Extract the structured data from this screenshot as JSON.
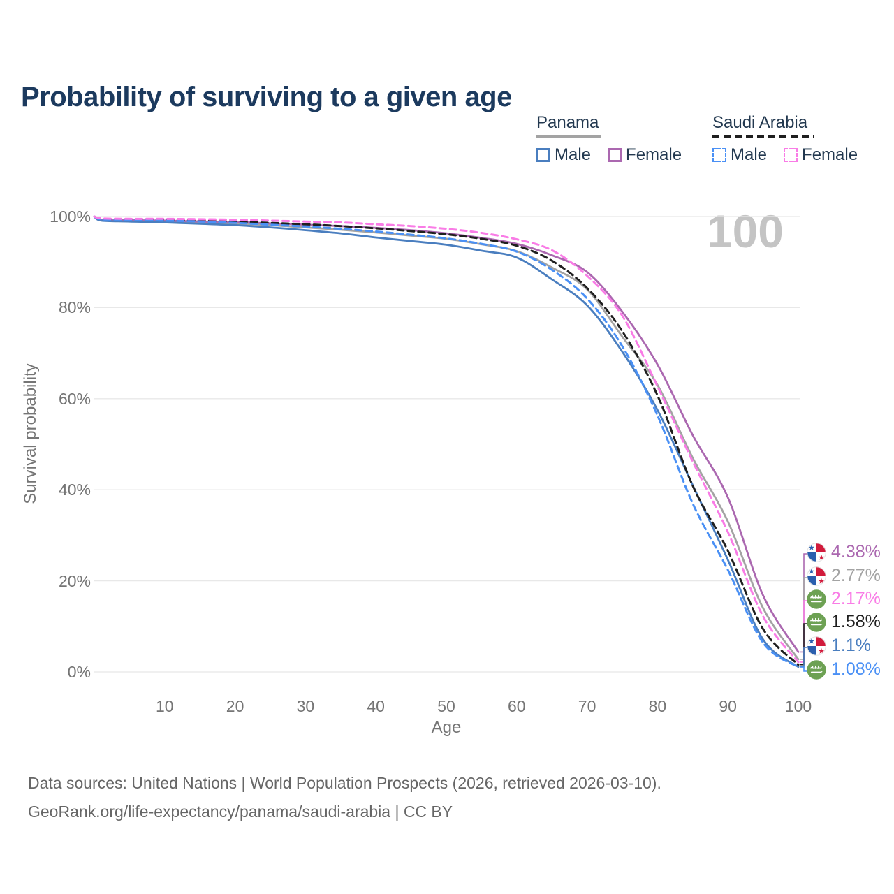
{
  "title": "Probability of surviving to a given age",
  "watermark": "100",
  "legend": {
    "groups": [
      {
        "label": "Panama",
        "line": "solid",
        "underline_color": "#a3a3a3",
        "items": [
          {
            "label": "Male",
            "color": "#4a7ebf"
          },
          {
            "label": "Female",
            "color": "#ab68b0"
          }
        ]
      },
      {
        "label": "Saudi Arabia",
        "line": "dashed",
        "underline_color": "#1f1f1f",
        "items": [
          {
            "label": "Male",
            "color": "#4a90f5"
          },
          {
            "label": "Female",
            "color": "#f97ce6"
          }
        ]
      }
    ]
  },
  "axes": {
    "x": {
      "label": "Age",
      "ticks": [
        10,
        20,
        30,
        40,
        50,
        60,
        70,
        80,
        90,
        100
      ],
      "range": [
        0,
        100
      ]
    },
    "y": {
      "label": "Survival probability",
      "ticks": [
        {
          "value": 100,
          "label": "100%"
        },
        {
          "value": 80,
          "label": "80%"
        },
        {
          "value": 60,
          "label": "60%"
        },
        {
          "value": 40,
          "label": "40%"
        },
        {
          "value": 20,
          "label": "20%"
        },
        {
          "value": 0,
          "label": "0%"
        }
      ],
      "range": [
        0,
        100
      ]
    }
  },
  "footer": {
    "line1": "Data sources: United Nations | World Population Prospects (2026, retrieved 2026-03-10).",
    "line2": "GeoRank.org/life-expectancy/panama/saudi-arabia | CC BY"
  },
  "colors": {
    "title": "#1c3a5e",
    "axis_text": "#757575",
    "gridline": "#e8e8e8",
    "watermark": "#c4c4c4",
    "footer_text": "#666666",
    "panama_flag_blue": "#2b5fae",
    "panama_flag_red": "#d21b3c",
    "saudi_flag_green": "#6da153"
  },
  "chart_data": {
    "type": "line",
    "title": "Probability of surviving to a given age",
    "xlabel": "Age",
    "ylabel": "Survival probability",
    "xlim": [
      0,
      100
    ],
    "ylim": [
      0,
      100
    ],
    "grid": "horizontal",
    "legend_position": "top-right",
    "x_ages": [
      0,
      1,
      5,
      10,
      15,
      20,
      25,
      30,
      35,
      40,
      45,
      50,
      55,
      60,
      65,
      70,
      75,
      80,
      85,
      90,
      95,
      100
    ],
    "series": [
      {
        "id": "panama_male",
        "name": "Panama Male",
        "country": "panama",
        "sex": "male",
        "line": "solid",
        "color": "#4a7ebf",
        "end_label": "1.1%",
        "end_value": 1.1,
        "values": [
          100,
          99.1,
          98.9,
          98.7,
          98.4,
          98.1,
          97.6,
          97.0,
          96.3,
          95.4,
          94.6,
          93.8,
          92.5,
          91.0,
          86.2,
          80.5,
          70.3,
          57.5,
          41.0,
          24.6,
          7.1,
          1.1
        ]
      },
      {
        "id": "panama_total",
        "name": "Panama",
        "country": "panama",
        "sex": "total",
        "line": "solid",
        "color": "#a3a3a3",
        "end_label": "2.77%",
        "end_value": 2.77,
        "values": [
          100,
          99.2,
          99.0,
          98.9,
          98.7,
          98.4,
          98.1,
          97.6,
          97.1,
          96.5,
          95.8,
          95.1,
          93.9,
          92.4,
          88.8,
          84.0,
          73.6,
          63.0,
          47.0,
          33.0,
          14.0,
          2.77
        ]
      },
      {
        "id": "panama_female",
        "name": "Panama Female",
        "country": "panama",
        "sex": "female",
        "line": "solid",
        "color": "#ab68b0",
        "end_label": "4.38%",
        "end_value": 4.38,
        "values": [
          100,
          99.3,
          99.2,
          99.1,
          98.9,
          98.8,
          98.5,
          98.2,
          97.9,
          97.5,
          97.0,
          96.3,
          95.3,
          94.0,
          91.5,
          87.8,
          79.1,
          67.5,
          52.0,
          38.3,
          16.8,
          4.38
        ]
      },
      {
        "id": "saudi_male",
        "name": "Saudi Arabia Male",
        "country": "saudi-arabia",
        "sex": "male",
        "line": "dashed",
        "color": "#4a90f5",
        "end_label": "1.08%",
        "end_value": 1.08,
        "values": [
          100,
          99.4,
          99.3,
          99.1,
          98.9,
          98.6,
          98.2,
          97.8,
          97.3,
          96.7,
          96.0,
          95.2,
          94.0,
          92.3,
          88.3,
          82.0,
          71.5,
          56.3,
          37.0,
          22.4,
          6.4,
          1.08
        ]
      },
      {
        "id": "saudi_total",
        "name": "Saudi Arabia",
        "country": "saudi-arabia",
        "sex": "total",
        "line": "dashed",
        "color": "#1f1f1f",
        "end_label": "1.58%",
        "end_value": 1.58,
        "values": [
          100,
          99.5,
          99.4,
          99.3,
          99.1,
          98.9,
          98.6,
          98.3,
          97.9,
          97.4,
          96.8,
          96.1,
          95.1,
          93.6,
          90.3,
          84.3,
          74.8,
          60.7,
          40.9,
          26.6,
          9.4,
          1.58
        ]
      },
      {
        "id": "saudi_female",
        "name": "Saudi Arabia Female",
        "country": "saudi-arabia",
        "sex": "female",
        "line": "dashed",
        "color": "#f97ce6",
        "end_label": "2.17%",
        "end_value": 2.17,
        "values": [
          100,
          99.6,
          99.5,
          99.5,
          99.4,
          99.3,
          99.1,
          98.9,
          98.7,
          98.3,
          97.9,
          97.3,
          96.4,
          95.0,
          92.6,
          87.0,
          78.2,
          62.7,
          46.2,
          30.7,
          12.2,
          2.17
        ]
      }
    ]
  }
}
